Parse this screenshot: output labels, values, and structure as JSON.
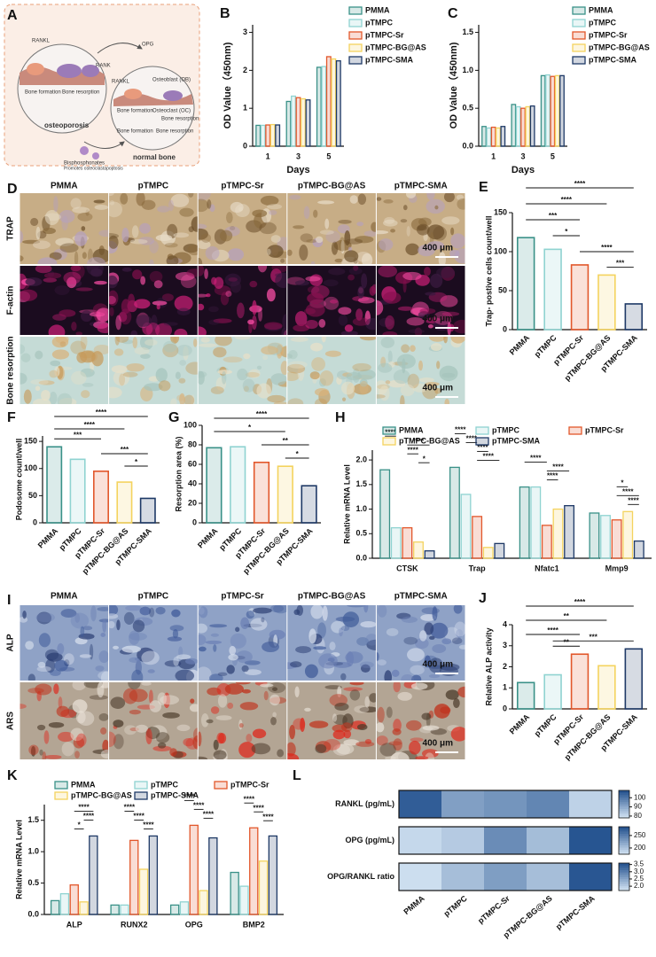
{
  "panel_labels": [
    "A",
    "B",
    "C",
    "D",
    "E",
    "F",
    "G",
    "H",
    "I",
    "J",
    "K",
    "L"
  ],
  "diagram": {
    "labels": [
      "RANKL",
      "RANK",
      "OPG",
      "RANKL",
      "Bone formation",
      "Bone resorption",
      "Osteoblast (OB)",
      "Osteoclast (OC)",
      "Bone formation",
      "Bone resorption",
      "Bone formation",
      "Bone resorption",
      "osteoporosis",
      "normal bone",
      "Bisphosphonates",
      "Promotes osteoclastapoptosis"
    ]
  },
  "image_panels": [
    {
      "columns": [
        "PMMA",
        "pTMPC",
        "pTMPC-Sr",
        "pTMPC-BG@AS",
        "pTMPC-SMA"
      ],
      "rows": [
        "TRAP",
        "F-actin",
        "Bone resorption"
      ],
      "scale_bar": "400 μm"
    },
    {
      "columns": [
        "PMMA",
        "pTMPC",
        "pTMPC-Sr",
        "pTMPC-BG@AS",
        "pTMPC-SMA"
      ],
      "rows": [
        "ALP",
        "ARS"
      ],
      "scale_bar": "400 μm"
    }
  ],
  "chart_data": [
    {
      "type": "grouped_bar",
      "xlabel": "Days",
      "ylabel": "OD Value（450nm)",
      "categories": [
        "1",
        "3",
        "5"
      ],
      "series": [
        {
          "name": "PMMA",
          "color": "#3a9188",
          "values": [
            0.55,
            1.18,
            2.08
          ]
        },
        {
          "name": "pTMPC",
          "color": "#8fd3d1",
          "values": [
            0.55,
            1.32,
            2.1
          ]
        },
        {
          "name": "pTMPC-Sr",
          "color": "#e2572b",
          "values": [
            0.56,
            1.28,
            2.36
          ]
        },
        {
          "name": "pTMPC-BG@AS",
          "color": "#f4d35e",
          "values": [
            0.57,
            1.25,
            2.3
          ]
        },
        {
          "name": "pTMPC-SMA",
          "color": "#1e3966",
          "values": [
            0.56,
            1.22,
            2.25
          ]
        }
      ],
      "ylim": [
        0,
        3.2
      ],
      "yticks": [
        0,
        1,
        2,
        3
      ],
      "legend": "right"
    },
    {
      "type": "grouped_bar",
      "xlabel": "Days",
      "ylabel": "OD Value（450nm)",
      "categories": [
        "1",
        "3",
        "5"
      ],
      "series": [
        {
          "name": "PMMA",
          "color": "#3a9188",
          "values": [
            0.26,
            0.55,
            0.93
          ]
        },
        {
          "name": "pTMPC",
          "color": "#8fd3d1",
          "values": [
            0.24,
            0.52,
            0.94
          ]
        },
        {
          "name": "pTMPC-Sr",
          "color": "#e2572b",
          "values": [
            0.25,
            0.5,
            0.92
          ]
        },
        {
          "name": "pTMPC-BG@AS",
          "color": "#f4d35e",
          "values": [
            0.24,
            0.52,
            0.93
          ]
        },
        {
          "name": "pTMPC-SMA",
          "color": "#1e3966",
          "values": [
            0.26,
            0.53,
            0.93
          ]
        }
      ],
      "ylim": [
        0,
        1.6
      ],
      "yticks": [
        {
          "value": 0,
          "label": "0.0"
        },
        0.5,
        {
          "value": 1,
          "label": "1.0"
        },
        1.5
      ],
      "legend": "right"
    },
    {
      "type": "bar",
      "ylabel": "Trap- postive cells count/well",
      "categories": [
        "PMMA",
        "pTMPC",
        "pTMPC-Sr",
        "pTMPC-BG@AS",
        "pTMPC-SMA"
      ],
      "colors": [
        "#3a9188",
        "#8fd3d1",
        "#e2572b",
        "#f4d35e",
        "#1e3966"
      ],
      "values": [
        118,
        103,
        83,
        70,
        33
      ],
      "ylim": [
        0,
        150
      ],
      "yticks": [
        0,
        50,
        100,
        150
      ],
      "annotations": [
        {
          "text": "****",
          "pair": [
            0,
            4
          ]
        },
        {
          "text": "****",
          "pair": [
            0,
            3
          ]
        },
        {
          "text": "***",
          "pair": [
            0,
            2
          ]
        },
        {
          "text": "*",
          "pair": [
            1,
            2
          ]
        },
        {
          "text": "****",
          "pair": [
            2,
            4
          ]
        },
        {
          "text": "***",
          "pair": [
            3,
            4
          ]
        }
      ]
    },
    {
      "type": "bar",
      "ylabel": "Podosome count/well",
      "categories": [
        "PMMA",
        "pTMPC",
        "pTMPC-Sr",
        "pTMPC-BG@AS",
        "pTMPC-SMA"
      ],
      "colors": [
        "#3a9188",
        "#8fd3d1",
        "#e2572b",
        "#f4d35e",
        "#1e3966"
      ],
      "values": [
        140,
        117,
        95,
        75,
        45
      ],
      "ylim": [
        0,
        160
      ],
      "yticks": [
        0,
        50,
        100,
        150
      ],
      "annotations": [
        {
          "text": "****",
          "pair": [
            0,
            4
          ]
        },
        {
          "text": "****",
          "pair": [
            0,
            3
          ]
        },
        {
          "text": "***",
          "pair": [
            0,
            2
          ]
        },
        {
          "text": "***",
          "pair": [
            2,
            4
          ]
        },
        {
          "text": "*",
          "pair": [
            3,
            4
          ]
        }
      ]
    },
    {
      "type": "bar",
      "ylabel": "Resorption area (%)",
      "categories": [
        "PMMA",
        "pTMPC",
        "pTMPC-Sr",
        "pTMPC-BG@AS",
        "pTMPC-SMA"
      ],
      "colors": [
        "#3a9188",
        "#8fd3d1",
        "#e2572b",
        "#f4d35e",
        "#1e3966"
      ],
      "values": [
        77,
        78,
        62,
        58,
        38
      ],
      "ylim": [
        0,
        100
      ],
      "yticks": [
        0,
        20,
        40,
        60,
        80,
        100
      ],
      "annotations": [
        {
          "text": "****",
          "pair": [
            0,
            4
          ]
        },
        {
          "text": "*",
          "pair": [
            0,
            3
          ]
        },
        {
          "text": "**",
          "pair": [
            2,
            4
          ]
        },
        {
          "text": "*",
          "pair": [
            3,
            4
          ]
        }
      ]
    },
    {
      "type": "grouped_bar",
      "ylabel": "Relative mRNA Level",
      "categories": [
        "CTSK",
        "Trap",
        "Nfatc1",
        "Mmp9"
      ],
      "series": [
        {
          "name": "PMMA",
          "color": "#3a9188",
          "values": [
            1.8,
            1.85,
            1.45,
            0.92
          ]
        },
        {
          "name": "pTMPC",
          "color": "#8fd3d1",
          "values": [
            0.62,
            1.3,
            1.45,
            0.87
          ]
        },
        {
          "name": "pTMPC-Sr",
          "color": "#e2572b",
          "values": [
            0.62,
            0.85,
            0.67,
            0.78
          ]
        },
        {
          "name": "pTMPC-BG@AS",
          "color": "#f4d35e",
          "values": [
            0.33,
            0.22,
            1.0,
            0.95
          ]
        },
        {
          "name": "pTMPC-SMA",
          "color": "#1e3966",
          "values": [
            0.15,
            0.3,
            1.07,
            0.35
          ]
        }
      ],
      "ylim": [
        0,
        2.2
      ],
      "yticks": [
        {
          "value": 0,
          "label": "0.0"
        },
        0.5,
        {
          "value": 1,
          "label": "1.0"
        },
        1.5,
        {
          "value": 2,
          "label": "2.0"
        }
      ],
      "legend": "top",
      "annotations": [
        {
          "text": "****",
          "category": 0,
          "pair": [
            0,
            1
          ]
        },
        {
          "text": "****",
          "category": 0,
          "pair": [
            2,
            4
          ]
        },
        {
          "text": "****",
          "category": 0,
          "pair": [
            2,
            3
          ]
        },
        {
          "text": "*",
          "category": 0,
          "pair": [
            3,
            4
          ]
        },
        {
          "text": "****",
          "category": 1,
          "pair": [
            0,
            1
          ]
        },
        {
          "text": "****",
          "category": 1,
          "pair": [
            1,
            2
          ]
        },
        {
          "text": "****",
          "category": 1,
          "pair": [
            2,
            3
          ]
        },
        {
          "text": "****",
          "category": 1,
          "pair": [
            2,
            4
          ]
        },
        {
          "text": "****",
          "category": 2,
          "pair": [
            0,
            2
          ]
        },
        {
          "text": "****",
          "category": 2,
          "pair": [
            2,
            4
          ]
        },
        {
          "text": "****",
          "category": 2,
          "pair": [
            2,
            3
          ]
        },
        {
          "text": "*",
          "category": 3,
          "pair": [
            2,
            3
          ]
        },
        {
          "text": "****",
          "category": 3,
          "pair": [
            2,
            4
          ]
        },
        {
          "text": "****",
          "category": 3,
          "pair": [
            3,
            4
          ]
        }
      ]
    },
    {
      "type": "bar",
      "ylabel": "Relative ALP activity",
      "categories": [
        "PMMA",
        "pTMPC",
        "pTMPC-Sr",
        "pTMPC-BG@AS",
        "pTMPC-SMA"
      ],
      "colors": [
        "#3a9188",
        "#8fd3d1",
        "#e2572b",
        "#f4d35e",
        "#1e3966"
      ],
      "values": [
        1.25,
        1.62,
        2.6,
        2.05,
        2.85
      ],
      "ylim": [
        0,
        4
      ],
      "yticks": [
        0,
        1,
        2,
        3,
        4
      ],
      "annotations": [
        {
          "text": "****",
          "pair": [
            0,
            4
          ]
        },
        {
          "text": "**",
          "pair": [
            0,
            3
          ]
        },
        {
          "text": "****",
          "pair": [
            0,
            2
          ]
        },
        {
          "text": "***",
          "pair": [
            1,
            4
          ]
        },
        {
          "text": "**",
          "pair": [
            1,
            2
          ]
        }
      ]
    },
    {
      "type": "grouped_bar",
      "ylabel": "Relative mRNA Level",
      "categories": [
        "ALP",
        "RUNX2",
        "OPG",
        "BMP2"
      ],
      "series": [
        {
          "name": "PMMA",
          "color": "#3a9188",
          "values": [
            0.22,
            0.15,
            0.15,
            0.67
          ]
        },
        {
          "name": "pTMPC",
          "color": "#8fd3d1",
          "values": [
            0.33,
            0.15,
            0.2,
            0.45
          ]
        },
        {
          "name": "pTMPC-Sr",
          "color": "#e2572b",
          "values": [
            0.47,
            1.18,
            1.42,
            1.38
          ]
        },
        {
          "name": "pTMPC-BG@AS",
          "color": "#f4d35e",
          "values": [
            0.2,
            0.72,
            0.38,
            0.85
          ]
        },
        {
          "name": "pTMPC-SMA",
          "color": "#1e3966",
          "values": [
            1.25,
            1.25,
            1.22,
            1.25
          ]
        }
      ],
      "ylim": [
        0,
        1.75
      ],
      "yticks": [
        {
          "value": 0,
          "label": "0.0"
        },
        0.5,
        {
          "value": 1,
          "label": "1.0"
        },
        1.5
      ],
      "legend": "top",
      "annotations": [
        {
          "text": "****",
          "category": 0,
          "pair": [
            2,
            4
          ]
        },
        {
          "text": "****",
          "category": 0,
          "pair": [
            3,
            4
          ]
        },
        {
          "text": "*",
          "category": 0,
          "pair": [
            2,
            3
          ]
        },
        {
          "text": "****",
          "category": 1,
          "pair": [
            1,
            2
          ]
        },
        {
          "text": "****",
          "category": 1,
          "pair": [
            2,
            3
          ]
        },
        {
          "text": "****",
          "category": 1,
          "pair": [
            3,
            4
          ]
        },
        {
          "text": "****",
          "category": 2,
          "pair": [
            1,
            2
          ]
        },
        {
          "text": "****",
          "category": 2,
          "pair": [
            2,
            3
          ]
        },
        {
          "text": "****",
          "category": 2,
          "pair": [
            3,
            4
          ]
        },
        {
          "text": "****",
          "category": 3,
          "pair": [
            1,
            2
          ]
        },
        {
          "text": "****",
          "category": 3,
          "pair": [
            2,
            3
          ]
        },
        {
          "text": "****",
          "category": 3,
          "pair": [
            3,
            4
          ]
        }
      ]
    },
    {
      "type": "heatmap",
      "categories": [
        "PMMA",
        "pTMPC",
        "pTMPC-Sr",
        "pTMPC-BG@AS",
        "pTMPC-SMA"
      ],
      "colors": [
        "#d6e6f5",
        "#1f4e8c"
      ],
      "rows": [
        {
          "name": "RANKL (pg/mL)",
          "values": [
            105,
            92,
            94,
            97,
            82
          ],
          "clim": [
            78,
            108
          ],
          "cticks": [
            80,
            90,
            100
          ]
        },
        {
          "name": "OPG (pg/mL)",
          "values": [
            185,
            195,
            240,
            205,
            280
          ],
          "clim": [
            175,
            285
          ],
          "cticks": [
            200,
            250
          ]
        },
        {
          "name": "OPG/RANKL ratio",
          "values": [
            1.8,
            2.2,
            2.6,
            2.2,
            3.5
          ],
          "clim": [
            1.7,
            3.6
          ],
          "cticks": [
            {
              "value": 2,
              "label": "2.0"
            },
            2.5,
            {
              "value": 3,
              "label": "3.0"
            },
            3.5
          ]
        }
      ]
    }
  ]
}
